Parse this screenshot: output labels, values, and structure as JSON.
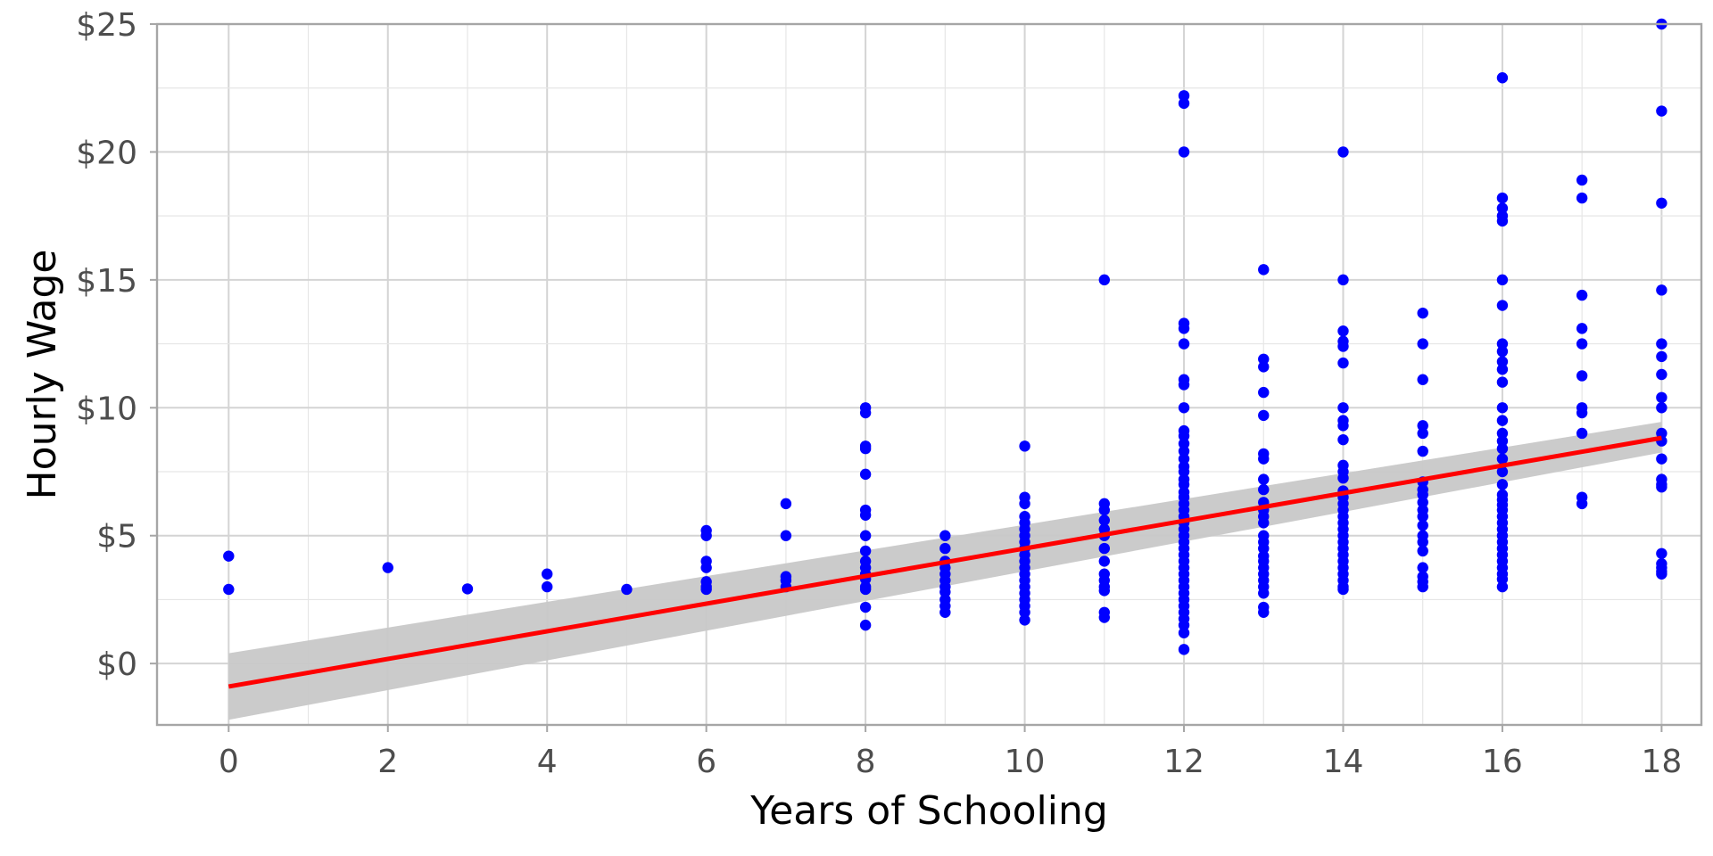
{
  "chart_data": {
    "type": "scatter",
    "xlabel": "Years of Schooling",
    "ylabel": "Hourly Wage",
    "xlim": [
      -0.9,
      18.5
    ],
    "ylim": [
      -2.4,
      25
    ],
    "x_ticks": [
      0,
      2,
      4,
      6,
      8,
      10,
      12,
      14,
      16,
      18
    ],
    "x_tick_labels": [
      "0",
      "2",
      "4",
      "6",
      "8",
      "10",
      "12",
      "14",
      "16",
      "18"
    ],
    "y_ticks": [
      0,
      5,
      10,
      15,
      20,
      25
    ],
    "y_tick_labels": [
      "$0",
      "$5",
      "$10",
      "$15",
      "$20",
      "$25"
    ],
    "grid": true,
    "legend": "none",
    "colors": {
      "points": "#0000ff",
      "fit_line": "#ff0000",
      "confidence_band": "#c8c8c8"
    },
    "fit": {
      "method": "linear regression",
      "intercept": -0.9,
      "slope": 0.54,
      "x_range": [
        0,
        18
      ],
      "band_lower": [
        -2.2,
        8.25
      ],
      "band_upper": [
        0.4,
        9.45
      ]
    },
    "points": {
      "0": [
        4.2,
        2.9
      ],
      "2": [
        3.75
      ],
      "3": [
        2.92
      ],
      "4": [
        3.5,
        3.0
      ],
      "5": [
        2.9
      ],
      "6": [
        5.2,
        5.0,
        4.0,
        3.75,
        3.2,
        3.0,
        2.9
      ],
      "7": [
        6.25,
        5.0,
        3.4,
        3.25,
        3.0
      ],
      "8": [
        10.0,
        9.8,
        8.5,
        8.4,
        7.4,
        6.0,
        5.8,
        5.0,
        4.4,
        4.0,
        3.75,
        3.5,
        3.3,
        3.0,
        2.9,
        2.2,
        1.5
      ],
      "9": [
        5.0,
        4.5,
        4.0,
        3.75,
        3.5,
        3.25,
        3.0,
        2.8,
        2.5,
        2.25,
        2.0
      ],
      "10": [
        8.5,
        6.5,
        6.25,
        5.75,
        5.5,
        5.25,
        5.0,
        4.75,
        4.5,
        4.25,
        4.0,
        3.75,
        3.5,
        3.25,
        3.0,
        2.75,
        2.5,
        2.25,
        2.0,
        1.7
      ],
      "11": [
        15.0,
        6.25,
        6.0,
        5.6,
        5.25,
        5.0,
        4.5,
        4.0,
        3.5,
        3.25,
        3.0,
        2.85,
        2.0,
        1.8
      ],
      "12": [
        22.2,
        21.9,
        20.0,
        13.3,
        13.1,
        12.5,
        11.1,
        10.9,
        10.0,
        9.1,
        8.9,
        8.6,
        8.3,
        8.0,
        7.7,
        7.5,
        7.2,
        7.0,
        6.7,
        6.5,
        6.25,
        6.0,
        5.75,
        5.5,
        5.25,
        5.0,
        4.75,
        4.5,
        4.25,
        4.0,
        3.75,
        3.5,
        3.25,
        3.0,
        2.75,
        2.5,
        2.25,
        2.0,
        1.75,
        1.5,
        1.2,
        0.55
      ],
      "13": [
        15.4,
        11.9,
        11.6,
        10.6,
        9.7,
        8.2,
        8.0,
        7.2,
        6.8,
        6.3,
        6.0,
        5.75,
        5.5,
        5.0,
        4.75,
        4.5,
        4.2,
        4.0,
        3.75,
        3.5,
        3.25,
        3.0,
        2.75,
        2.2,
        2.0
      ],
      "14": [
        20.0,
        15.0,
        13.0,
        12.6,
        12.4,
        11.75,
        10.0,
        9.5,
        9.3,
        8.75,
        7.75,
        7.5,
        7.25,
        6.75,
        6.5,
        6.25,
        6.0,
        5.75,
        5.5,
        5.25,
        5.0,
        4.75,
        4.5,
        4.25,
        4.0,
        3.75,
        3.5,
        3.25,
        3.0,
        2.9
      ],
      "15": [
        13.7,
        12.5,
        11.1,
        9.3,
        9.0,
        8.3,
        7.1,
        6.8,
        6.6,
        6.3,
        6.0,
        5.75,
        5.4,
        5.0,
        4.75,
        4.4,
        3.75,
        3.4,
        3.2,
        3.0
      ],
      "16": [
        22.9,
        18.2,
        17.8,
        17.5,
        17.3,
        15.0,
        14.0,
        12.5,
        12.2,
        11.8,
        11.5,
        11.0,
        10.0,
        9.5,
        9.0,
        8.7,
        8.4,
        8.0,
        7.5,
        7.0,
        6.6,
        6.4,
        6.2,
        6.0,
        5.75,
        5.5,
        5.25,
        5.0,
        4.75,
        4.5,
        4.25,
        4.0,
        3.75,
        3.5,
        3.3,
        3.0
      ],
      "17": [
        18.9,
        18.2,
        14.4,
        13.1,
        12.5,
        11.25,
        10.0,
        9.8,
        9.0,
        6.5,
        6.25
      ],
      "18": [
        25.0,
        21.6,
        18.0,
        14.6,
        12.5,
        12.0,
        11.3,
        10.4,
        10.0,
        9.0,
        8.7,
        8.0,
        7.2,
        7.0,
        6.9,
        4.3,
        3.9,
        3.75,
        3.6,
        3.5
      ]
    }
  }
}
